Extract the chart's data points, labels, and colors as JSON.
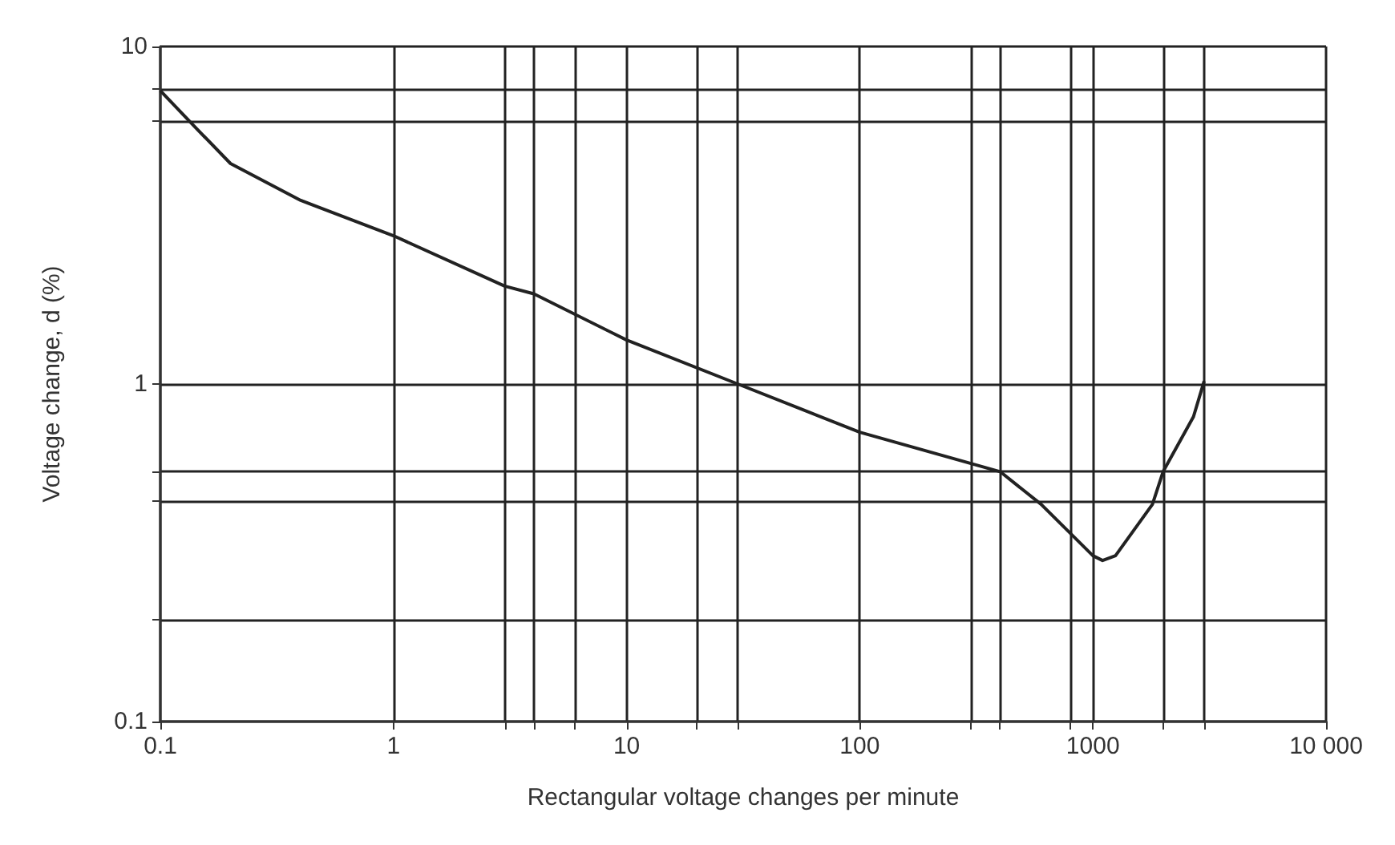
{
  "chart_data": {
    "type": "line",
    "xlabel": "Rectangular voltage changes per minute",
    "ylabel": "Voltage change, d (%)",
    "log": "xy",
    "grid": true,
    "marker": "none",
    "line_style": "solid",
    "xlim": [
      0.1,
      10000
    ],
    "ylim": [
      0.1,
      10
    ],
    "xticks": [
      0.1,
      1,
      {
        "value": 3,
        "label": null
      },
      {
        "value": 4,
        "label": null
      },
      {
        "value": 6,
        "label": null
      },
      10,
      {
        "value": 20,
        "label": null
      },
      {
        "value": 30,
        "label": null
      },
      100,
      {
        "value": 300,
        "label": null
      },
      {
        "value": 400,
        "label": null
      },
      {
        "value": 800,
        "label": null
      },
      1000,
      {
        "value": 2000,
        "label": null
      },
      {
        "value": 3000,
        "label": null
      },
      {
        "value": 10000,
        "label": "10 000"
      }
    ],
    "yticks": [
      0.1,
      {
        "value": 0.2,
        "label": null
      },
      {
        "value": 0.45,
        "label": null
      },
      {
        "value": 0.55,
        "label": null
      },
      1,
      {
        "value": 6,
        "label": null
      },
      {
        "value": 7.5,
        "label": null
      },
      10
    ],
    "series": [
      {
        "color": "#222222",
        "x": [
          0.1,
          0.14,
          0.2,
          0.4,
          1,
          3,
          4,
          10,
          30,
          100,
          400,
          600,
          1000,
          1100,
          1250,
          1800,
          2000,
          2700,
          3000
        ],
        "values": [
          7.4,
          5.8,
          4.5,
          3.5,
          2.75,
          1.95,
          1.85,
          1.35,
          1.0,
          0.72,
          0.55,
          0.44,
          0.31,
          0.3,
          0.31,
          0.44,
          0.55,
          0.8,
          1.02
        ]
      }
    ]
  }
}
